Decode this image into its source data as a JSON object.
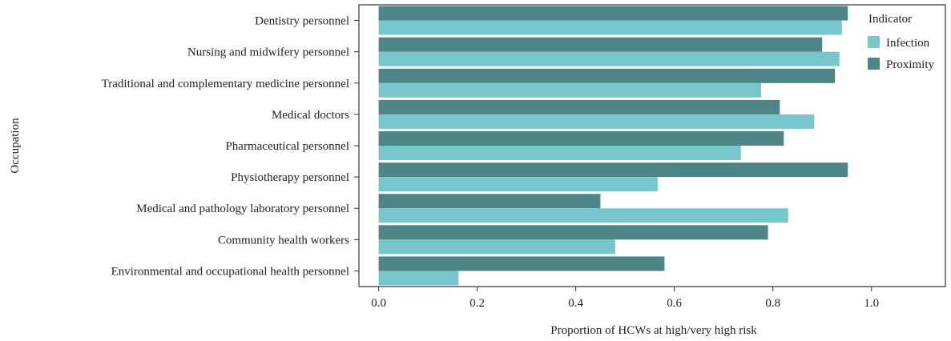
{
  "chart_data": {
    "type": "bar",
    "orientation": "horizontal",
    "xlabel": "Proportion of HCWs at high/very high risk",
    "ylabel": "Occupation",
    "xlim": [
      -0.04,
      1.15
    ],
    "xticks": [
      "0.0",
      "0.2",
      "0.4",
      "0.6",
      "0.8",
      "1.0"
    ],
    "grid": false,
    "legend_title": "Indicator",
    "legend_position": "top-right",
    "categories": [
      "Dentistry personnel",
      "Nursing and midwifery personnel",
      "Traditional and complementary medicine personnel",
      "Medical doctors",
      "Pharmaceutical personnel",
      "Physiotherapy personnel",
      "Medical and pathology laboratory personnel",
      "Community health workers",
      "Environmental and occupational health personnel"
    ],
    "series": [
      {
        "name": "Proximity",
        "color": "#4e8587",
        "values": [
          0.952,
          0.9,
          0.926,
          0.814,
          0.822,
          0.952,
          0.45,
          0.79,
          0.58
        ]
      },
      {
        "name": "Infection",
        "color": "#76c6cc",
        "values": [
          0.94,
          0.935,
          0.776,
          0.884,
          0.735,
          0.566,
          0.831,
          0.48,
          0.162
        ]
      }
    ],
    "legend_order": [
      "Infection",
      "Proximity"
    ]
  }
}
